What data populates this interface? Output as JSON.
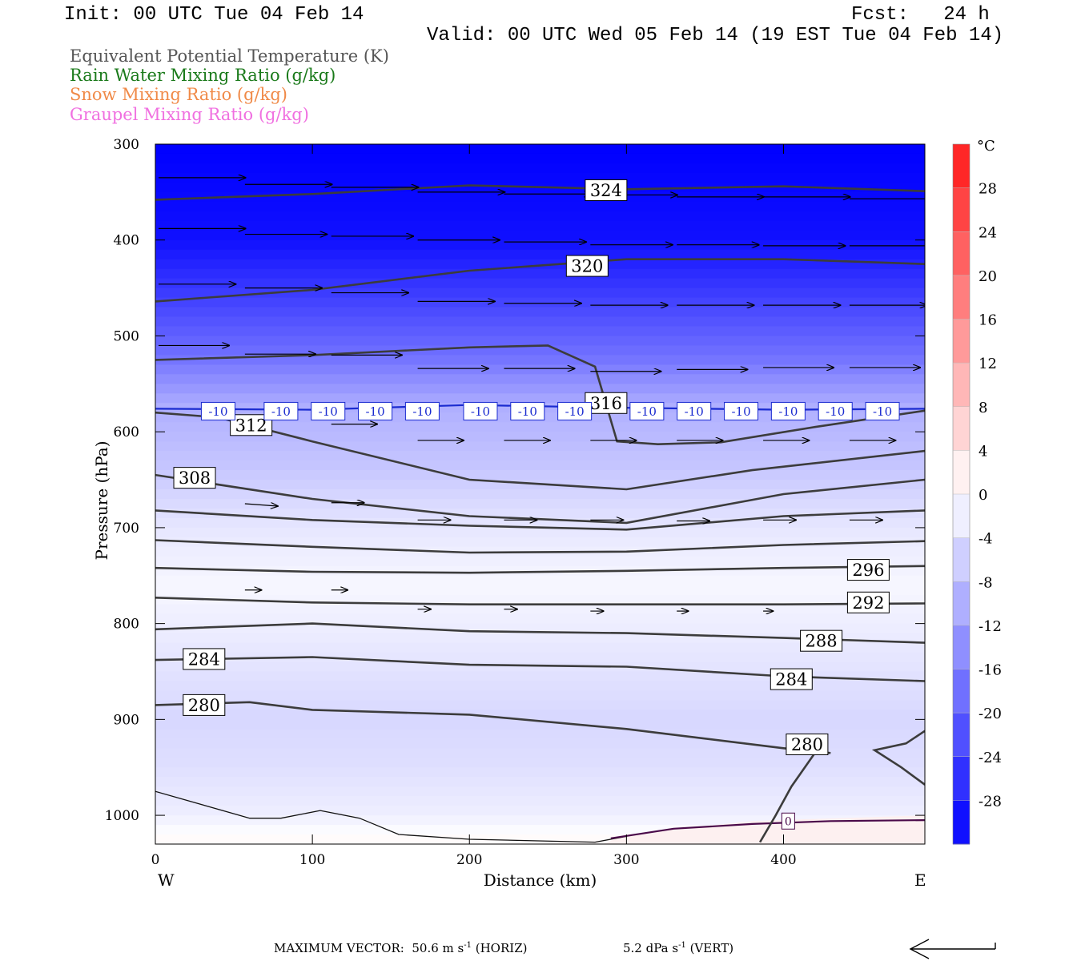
{
  "header": {
    "init": "Init: 00 UTC Tue 04 Feb 14",
    "fcst": "Fcst:   24 h",
    "valid": "Valid: 00 UTC Wed 05 Feb 14 (19 EST Tue 04 Feb 14)"
  },
  "legend": [
    {
      "label": "Equivalent Potential Temperature (K)",
      "color": "#555555"
    },
    {
      "label": "Rain Water Mixing Ratio (g/kg)",
      "color": "#1a7a1a"
    },
    {
      "label": "Snow Mixing Ratio (g/kg)",
      "color": "#f08a48"
    },
    {
      "label": "Graupel Mixing Ratio (g/kg)",
      "color": "#f070e0"
    }
  ],
  "chart_data": {
    "type": "cross-section",
    "xlabel": "Distance (km)",
    "ylabel": "Pressure (hPa)",
    "xlim": [
      0,
      490
    ],
    "ylim": [
      1030,
      300
    ],
    "x_ticks": [
      0,
      100,
      200,
      300,
      400
    ],
    "y_ticks": [
      300,
      400,
      500,
      600,
      700,
      800,
      900,
      1000
    ],
    "left_label": "W",
    "right_label": "E",
    "colorbar": {
      "unit": "°C",
      "ticks": [
        28,
        24,
        20,
        16,
        12,
        8,
        4,
        0,
        -4,
        -8,
        -12,
        -16,
        -20,
        -24,
        -28
      ],
      "range": [
        -32,
        32
      ]
    },
    "temperature_field": [
      {
        "p": 300,
        "t": -32
      },
      {
        "p": 400,
        "t": -30
      },
      {
        "p": 460,
        "t": -24
      },
      {
        "p": 520,
        "t": -18
      },
      {
        "p": 575,
        "t": -10
      },
      {
        "p": 640,
        "t": -7
      },
      {
        "p": 700,
        "t": -3
      },
      {
        "p": 760,
        "t": -1
      },
      {
        "p": 830,
        "t": -3
      },
      {
        "p": 900,
        "t": -5
      },
      {
        "p": 950,
        "t": -4
      },
      {
        "p": 1000,
        "t": -2
      },
      {
        "p": 1030,
        "t": 1
      }
    ],
    "theta_e_contours": [
      {
        "label": "324",
        "label_at": [
          287,
          348
        ],
        "points": [
          [
            0,
            358
          ],
          [
            100,
            352
          ],
          [
            200,
            343
          ],
          [
            300,
            347
          ],
          [
            400,
            344
          ],
          [
            490,
            349
          ]
        ]
      },
      {
        "label": "320",
        "label_at": [
          275,
          427
        ],
        "points": [
          [
            0,
            464
          ],
          [
            100,
            452
          ],
          [
            200,
            432
          ],
          [
            300,
            420
          ],
          [
            400,
            420
          ],
          [
            490,
            425
          ]
        ]
      },
      {
        "label": "316",
        "label_at": [
          287,
          570
        ],
        "points": [
          [
            0,
            525
          ],
          [
            100,
            520
          ],
          [
            200,
            512
          ],
          [
            250,
            510
          ],
          [
            280,
            532
          ],
          [
            294,
            610
          ],
          [
            320,
            613
          ],
          [
            360,
            611
          ],
          [
            420,
            595
          ],
          [
            490,
            578
          ]
        ]
      },
      {
        "label": "312",
        "label_at": [
          61,
          593
        ],
        "points": [
          [
            0,
            580
          ],
          [
            40,
            585
          ],
          [
            100,
            610
          ],
          [
            200,
            650
          ],
          [
            300,
            660
          ],
          [
            380,
            640
          ],
          [
            490,
            620
          ]
        ]
      },
      {
        "label": "308",
        "label_at": [
          25,
          648
        ],
        "points": [
          [
            0,
            645
          ],
          [
            100,
            670
          ],
          [
            200,
            688
          ],
          [
            300,
            695
          ],
          [
            400,
            665
          ],
          [
            490,
            650
          ]
        ]
      },
      {
        "label": "",
        "label_at": null,
        "points": [
          [
            0,
            682
          ],
          [
            100,
            692
          ],
          [
            200,
            698
          ],
          [
            300,
            702
          ],
          [
            400,
            688
          ],
          [
            490,
            682
          ]
        ]
      },
      {
        "label": "",
        "label_at": null,
        "points": [
          [
            0,
            713
          ],
          [
            100,
            720
          ],
          [
            200,
            726
          ],
          [
            300,
            725
          ],
          [
            400,
            718
          ],
          [
            490,
            714
          ]
        ]
      },
      {
        "label": "296",
        "label_at": [
          454,
          744
        ],
        "points": [
          [
            0,
            742
          ],
          [
            100,
            746
          ],
          [
            200,
            747
          ],
          [
            300,
            745
          ],
          [
            400,
            742
          ],
          [
            490,
            740
          ]
        ]
      },
      {
        "label": "292",
        "label_at": [
          454,
          778
        ],
        "points": [
          [
            0,
            773
          ],
          [
            100,
            778
          ],
          [
            200,
            780
          ],
          [
            300,
            780
          ],
          [
            400,
            780
          ],
          [
            490,
            779
          ]
        ]
      },
      {
        "label": "288",
        "label_at": [
          424,
          818
        ],
        "points": [
          [
            0,
            806
          ],
          [
            100,
            800
          ],
          [
            200,
            808
          ],
          [
            300,
            810
          ],
          [
            400,
            815
          ],
          [
            490,
            820
          ]
        ]
      },
      {
        "label": "284",
        "label_at": [
          31,
          837
        ],
        "points": [
          [
            0,
            838
          ],
          [
            100,
            835
          ],
          [
            200,
            843
          ],
          [
            300,
            845
          ],
          [
            400,
            855
          ],
          [
            490,
            860
          ]
        ]
      },
      {
        "label": "284",
        "label_at": [
          405,
          858
        ],
        "points": []
      },
      {
        "label": "280",
        "label_at": [
          31,
          885
        ],
        "points": [
          [
            0,
            885
          ],
          [
            60,
            882
          ],
          [
            100,
            890
          ],
          [
            200,
            895
          ],
          [
            300,
            910
          ],
          [
            400,
            930
          ],
          [
            430,
            935
          ]
        ]
      },
      {
        "label": "280",
        "label_at": [
          415,
          926
        ],
        "points": [
          [
            420,
            935
          ],
          [
            405,
            970
          ],
          [
            395,
            1000
          ],
          [
            385,
            1028
          ]
        ]
      },
      {
        "label": "",
        "label_at": null,
        "points": [
          [
            490,
            912
          ],
          [
            478,
            925
          ],
          [
            458,
            932
          ],
          [
            475,
            950
          ],
          [
            490,
            968
          ]
        ]
      }
    ],
    "isotherm": {
      "label": "-10",
      "color": "#1a2bd0",
      "points": [
        [
          0,
          576
        ],
        [
          100,
          577
        ],
        [
          200,
          572
        ],
        [
          300,
          575
        ],
        [
          400,
          577
        ],
        [
          490,
          576
        ]
      ],
      "label_positions": [
        40,
        80,
        110,
        140,
        170,
        207,
        237,
        267,
        313,
        343,
        373,
        403,
        433,
        463
      ]
    },
    "rain_contour": {
      "label": "0",
      "color": "#4a0a4a",
      "points": [
        [
          290,
          1024
        ],
        [
          330,
          1014
        ],
        [
          380,
          1009
        ],
        [
          430,
          1006
        ],
        [
          490,
          1005
        ]
      ]
    },
    "freezing_line": {
      "points": [
        [
          0,
          975
        ],
        [
          60,
          1003
        ],
        [
          80,
          1003
        ],
        [
          105,
          995
        ],
        [
          130,
          1003
        ],
        [
          155,
          1020
        ],
        [
          200,
          1025
        ],
        [
          280,
          1028
        ],
        [
          300,
          1022
        ]
      ]
    },
    "wind_vectors": [
      {
        "x": 0,
        "p": 335,
        "u": 53,
        "w": 0
      },
      {
        "x": 55,
        "p": 342,
        "u": 53,
        "w": 0
      },
      {
        "x": 110,
        "p": 345,
        "u": 53,
        "w": 0
      },
      {
        "x": 165,
        "p": 350,
        "u": 53,
        "w": 0
      },
      {
        "x": 220,
        "p": 352,
        "u": 53,
        "w": 0
      },
      {
        "x": 275,
        "p": 353,
        "u": 53,
        "w": 0
      },
      {
        "x": 330,
        "p": 355,
        "u": 53,
        "w": 0
      },
      {
        "x": 385,
        "p": 355,
        "u": 53,
        "w": 0
      },
      {
        "x": 440,
        "p": 357,
        "u": 53,
        "w": 0
      },
      {
        "x": 0,
        "p": 388,
        "u": 53,
        "w": 0
      },
      {
        "x": 55,
        "p": 394,
        "u": 50,
        "w": 0
      },
      {
        "x": 110,
        "p": 396,
        "u": 50,
        "w": 0
      },
      {
        "x": 165,
        "p": 400,
        "u": 50,
        "w": 0
      },
      {
        "x": 220,
        "p": 402,
        "u": 50,
        "w": 0
      },
      {
        "x": 275,
        "p": 405,
        "u": 50,
        "w": 0
      },
      {
        "x": 330,
        "p": 405,
        "u": 50,
        "w": 0
      },
      {
        "x": 385,
        "p": 406,
        "u": 50,
        "w": 0
      },
      {
        "x": 440,
        "p": 406,
        "u": 50,
        "w": 0
      },
      {
        "x": 0,
        "p": 446,
        "u": 47,
        "w": 0
      },
      {
        "x": 55,
        "p": 450,
        "u": 47,
        "w": 0
      },
      {
        "x": 110,
        "p": 455,
        "u": 47,
        "w": 0
      },
      {
        "x": 165,
        "p": 464,
        "u": 47,
        "w": 0
      },
      {
        "x": 220,
        "p": 466,
        "u": 47,
        "w": 0
      },
      {
        "x": 275,
        "p": 468,
        "u": 47,
        "w": 0
      },
      {
        "x": 330,
        "p": 468,
        "u": 47,
        "w": 0
      },
      {
        "x": 385,
        "p": 468,
        "u": 47,
        "w": 0
      },
      {
        "x": 440,
        "p": 468,
        "u": 47,
        "w": 0
      },
      {
        "x": 0,
        "p": 510,
        "u": 43,
        "w": 0
      },
      {
        "x": 55,
        "p": 519,
        "u": 43,
        "w": 0
      },
      {
        "x": 110,
        "p": 520,
        "u": 43,
        "w": 0
      },
      {
        "x": 165,
        "p": 534,
        "u": 43,
        "w": 0
      },
      {
        "x": 220,
        "p": 534,
        "u": 43,
        "w": 0
      },
      {
        "x": 275,
        "p": 537,
        "u": 43,
        "w": 0
      },
      {
        "x": 330,
        "p": 535,
        "u": 43,
        "w": 0
      },
      {
        "x": 385,
        "p": 533,
        "u": 43,
        "w": 0
      },
      {
        "x": 440,
        "p": 533,
        "u": 43,
        "w": 0
      },
      {
        "x": 110,
        "p": 592,
        "u": 28,
        "w": 0
      },
      {
        "x": 165,
        "p": 609,
        "u": 28,
        "w": 0
      },
      {
        "x": 220,
        "p": 609,
        "u": 28,
        "w": 0
      },
      {
        "x": 275,
        "p": 609,
        "u": 28,
        "w": 0
      },
      {
        "x": 330,
        "p": 609,
        "u": 28,
        "w": 0
      },
      {
        "x": 385,
        "p": 609,
        "u": 28,
        "w": 0
      },
      {
        "x": 440,
        "p": 609,
        "u": 28,
        "w": 0
      },
      {
        "x": 55,
        "p": 675,
        "u": 20,
        "w": -0.5
      },
      {
        "x": 110,
        "p": 674,
        "u": 20,
        "w": 0
      },
      {
        "x": 165,
        "p": 692,
        "u": 20,
        "w": 0
      },
      {
        "x": 220,
        "p": 692,
        "u": 20,
        "w": 0
      },
      {
        "x": 275,
        "p": 692,
        "u": 20,
        "w": 0
      },
      {
        "x": 330,
        "p": 693,
        "u": 20,
        "w": 0
      },
      {
        "x": 385,
        "p": 692,
        "u": 20,
        "w": 0
      },
      {
        "x": 440,
        "p": 692,
        "u": 20,
        "w": 0
      },
      {
        "x": 55,
        "p": 765,
        "u": 10,
        "w": 0
      },
      {
        "x": 110,
        "p": 765,
        "u": 10,
        "w": 0
      },
      {
        "x": 165,
        "p": 785,
        "u": 8,
        "w": 0
      },
      {
        "x": 220,
        "p": 785,
        "u": 8,
        "w": 0
      },
      {
        "x": 275,
        "p": 787,
        "u": 8,
        "w": 0
      },
      {
        "x": 330,
        "p": 787,
        "u": 7,
        "w": 0
      },
      {
        "x": 385,
        "p": 787,
        "u": 6,
        "w": 0
      },
      {
        "x": 440,
        "p": 785,
        "u": 6,
        "w": 0
      }
    ],
    "max_vector": {
      "horiz": "MAXIMUM VECTOR:  50.6 m s",
      "horiz_exp": "-1",
      "horiz_suffix": " (HORIZ)",
      "vert": "5.2 dPa s",
      "vert_exp": "-1",
      "vert_suffix": " (VERT)"
    }
  }
}
